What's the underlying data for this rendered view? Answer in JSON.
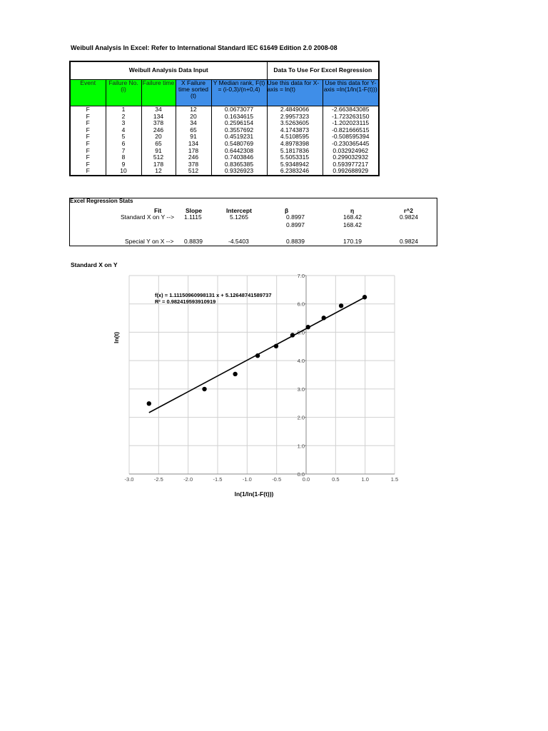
{
  "title": "Weibull Analysis In Excel: Refer to International Standard IEC 61649 Edition 2.0 2008-08",
  "table": {
    "group_input": "Weibull Analysis Data Input",
    "group_regression": "Data To Use For Excel Regression",
    "headers": [
      "Event",
      "Failure No. (i)",
      "Failure time",
      "X Failure time sorted (t)",
      "Y Median rank, F(t) = (i-0,3)/(n+0,4)",
      "Use this data for X-axis = ln(t)",
      "Use this data for Y-axis =ln(1/ln(1-F(t)))"
    ],
    "rows": [
      [
        "F",
        "1",
        "34",
        "12",
        "0.0673077",
        "2.4849066",
        "-2.663843085"
      ],
      [
        "F",
        "2",
        "134",
        "20",
        "0.1634615",
        "2.9957323",
        "-1.723263150"
      ],
      [
        "F",
        "3",
        "378",
        "34",
        "0.2596154",
        "3.5263605",
        "-1.202023115"
      ],
      [
        "F",
        "4",
        "246",
        "65",
        "0.3557692",
        "4.1743873",
        "-0.821666515"
      ],
      [
        "F",
        "5",
        "20",
        "91",
        "0.4519231",
        "4.5108595",
        "-0.508595394"
      ],
      [
        "F",
        "6",
        "65",
        "134",
        "0.5480769",
        "4.8978398",
        "-0.230365445"
      ],
      [
        "F",
        "7",
        "91",
        "178",
        "0.6442308",
        "5.1817836",
        "0.032924962"
      ],
      [
        "F",
        "8",
        "512",
        "246",
        "0.7403846",
        "5.5053315",
        "0.299032932"
      ],
      [
        "F",
        "9",
        "178",
        "378",
        "0.8365385",
        "5.9348942",
        "0.593977217"
      ],
      [
        "F",
        "10",
        "12",
        "512",
        "0.9326923",
        "6.2383246",
        "0.992688929"
      ]
    ]
  },
  "stats": {
    "heading": "Excel Regression Stats",
    "col_fit": "Fit",
    "col_slope": "Slope",
    "col_intercept": "Intercept",
    "col_beta": "β",
    "col_eta": "η",
    "col_r2": "r^2",
    "std_label": "Standard X on Y -->",
    "std_slope": "1.1115",
    "std_intercept": "5.1265",
    "std_beta": "0.8997",
    "std_eta": "168.42",
    "std_r2": "0.9824",
    "std_beta2": "0.8997",
    "std_eta2": "168.42",
    "sp_label": "Special Y on X -->",
    "sp_slope": "0.8839",
    "sp_intercept": "-4.5403",
    "sp_beta": "0.8839",
    "sp_eta": "170.19",
    "sp_r2": "0.9824"
  },
  "chart_title": "Standard X on Y",
  "chart_data": {
    "type": "scatter",
    "xlabel": "ln(1/ln(1-F(t)))",
    "ylabel": "ln(t)",
    "xlim": [
      -3.0,
      1.5
    ],
    "ylim": [
      0.0,
      7.0
    ],
    "x_ticks": [
      "-3.0",
      "-2.5",
      "-2.0",
      "-1.5",
      "-1.0",
      "-0.5",
      "0.0",
      "0.5",
      "1.0",
      "1.5"
    ],
    "y_ticks": [
      "0.0",
      "1.0",
      "2.0",
      "3.0",
      "4.0",
      "5.0",
      "6.0",
      "7.0"
    ],
    "equation": "f(x) = 1.11150960998131 x + 5.12648741589737",
    "r_squared": "R² = 0.982419593910919",
    "trend_slope": 1.11150960998131,
    "trend_intercept": 5.12648741589737,
    "x": [
      -2.663843085,
      -1.72326315,
      -1.202023115,
      -0.821666515,
      -0.508595394,
      -0.230365445,
      0.032924962,
      0.299032932,
      0.593977217,
      0.992688929
    ],
    "y": [
      2.4849066,
      2.9957323,
      3.5263605,
      4.1743873,
      4.5108595,
      4.8978398,
      5.1817836,
      5.5053315,
      5.9348942,
      6.2383246
    ]
  }
}
